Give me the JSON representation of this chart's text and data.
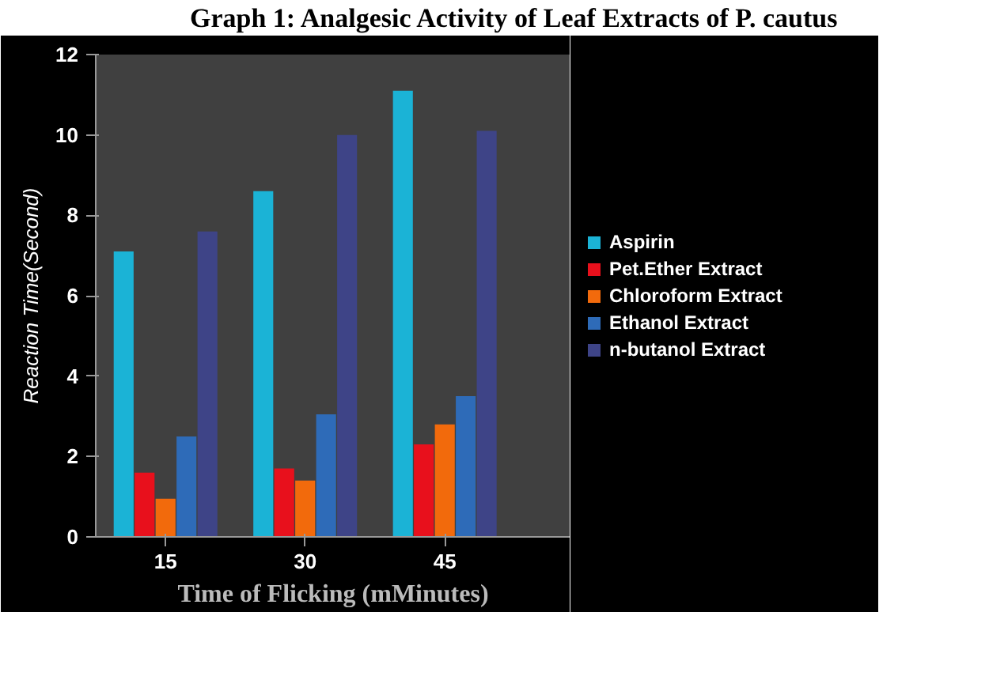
{
  "chart_data": {
    "type": "bar",
    "title": "Graph 1: Analgesic Activity of Leaf Extracts of P. cautus",
    "xlabel": "Time of Flicking (mMinutes)",
    "ylabel": "Reaction Time(Second)",
    "categories": [
      "15",
      "30",
      "45"
    ],
    "series": [
      {
        "name": "Aspirin",
        "color": "#1bb3d6",
        "values": [
          7.1,
          8.6,
          11.1
        ]
      },
      {
        "name": "Pet.Ether Extract",
        "color": "#e8101c",
        "values": [
          1.6,
          1.7,
          2.3
        ]
      },
      {
        "name": "Chloroform Extract",
        "color": "#f26a0c",
        "values": [
          0.95,
          1.4,
          2.8
        ]
      },
      {
        "name": "Ethanol Extract",
        "color": "#2e6bb8",
        "values": [
          2.5,
          3.05,
          3.5
        ]
      },
      {
        "name": "n-butanol Extract",
        "color": "#3e4487",
        "values": [
          7.6,
          10.0,
          10.1
        ]
      }
    ],
    "ylim": [
      0,
      12
    ],
    "yticks": [
      0,
      2,
      4,
      6,
      8,
      10,
      12
    ],
    "grid": false,
    "legend": "right"
  }
}
